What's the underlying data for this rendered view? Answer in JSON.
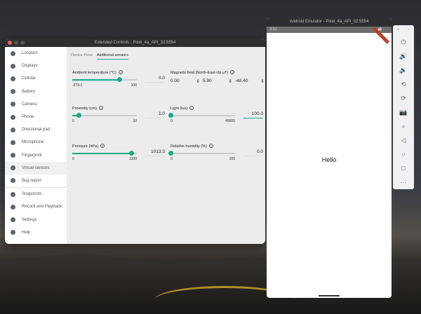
{
  "extended_controls": {
    "title": "Extended Controls - Pixel_4a_API_32:5554",
    "sidebar": [
      {
        "label": "Location",
        "icon": "location-pin-icon"
      },
      {
        "label": "Displays",
        "icon": "display-icon"
      },
      {
        "label": "Cellular",
        "icon": "signal-icon"
      },
      {
        "label": "Battery",
        "icon": "battery-icon"
      },
      {
        "label": "Camera",
        "icon": "camera-icon"
      },
      {
        "label": "Phone",
        "icon": "phone-icon"
      },
      {
        "label": "Directional pad",
        "icon": "dpad-icon"
      },
      {
        "label": "Microphone",
        "icon": "microphone-icon"
      },
      {
        "label": "Fingerprint",
        "icon": "fingerprint-icon"
      },
      {
        "label": "Virtual sensors",
        "icon": "rotate-icon",
        "active": true
      },
      {
        "label": "Bug report",
        "icon": "bug-icon"
      },
      {
        "label": "Snapshots",
        "icon": "history-icon"
      },
      {
        "label": "Record and Playback",
        "icon": "video-icon"
      },
      {
        "label": "Settings",
        "icon": "gear-icon"
      },
      {
        "label": "Help",
        "icon": "help-icon"
      }
    ],
    "tabs": [
      "Device Pose",
      "Additional sensors"
    ],
    "active_tab": "Additional sensors",
    "sensors": {
      "ambient": {
        "label": "Ambient temperature (°C)",
        "min": "-273.1",
        "max": "100",
        "value": "0.0",
        "percent": 73
      },
      "proximity": {
        "label": "Proximity (cm)",
        "min": "0",
        "max": "10",
        "value": "1.0",
        "percent": 10
      },
      "pressure": {
        "label": "Pressure (hPa)",
        "min": "0",
        "max": "1100",
        "value": "1013.3",
        "percent": 92
      },
      "magnetic": {
        "label": "Magnetic field (North-East-Up µT)",
        "x": "0.00",
        "y": "5.90",
        "z": "-48.40"
      },
      "light": {
        "label": "Light (lux)",
        "min": "0",
        "max": "40000",
        "value": "100.0",
        "percent": 0
      },
      "humidity": {
        "label": "Relative humidity (%)",
        "min": "0",
        "max": "100",
        "value": "0.0",
        "percent": 0
      }
    }
  },
  "emulator": {
    "title": "Android Emulator - Pixel_4a_API_32:5554",
    "time": "3:31",
    "content": "Hello",
    "toolbar_top": [
      "×",
      "−"
    ],
    "toolbar": [
      {
        "icon": "power-icon",
        "glyph": "⏻"
      },
      {
        "icon": "volume-up-icon",
        "glyph": "🔊"
      },
      {
        "icon": "volume-down-icon",
        "glyph": "🔉"
      },
      {
        "icon": "rotate-left-icon",
        "glyph": "⟲"
      },
      {
        "icon": "rotate-right-icon",
        "glyph": "⟳"
      },
      {
        "icon": "camera-icon",
        "glyph": "📷"
      },
      {
        "icon": "zoom-icon",
        "glyph": "⌕"
      },
      {
        "icon": "back-icon",
        "glyph": "◁"
      },
      {
        "icon": "home-icon",
        "glyph": "○"
      },
      {
        "icon": "overview-icon",
        "glyph": "□"
      },
      {
        "icon": "more-icon",
        "glyph": "⋯"
      }
    ]
  },
  "colors": {
    "accent": "#19a98a",
    "banner": "#b5442b"
  }
}
